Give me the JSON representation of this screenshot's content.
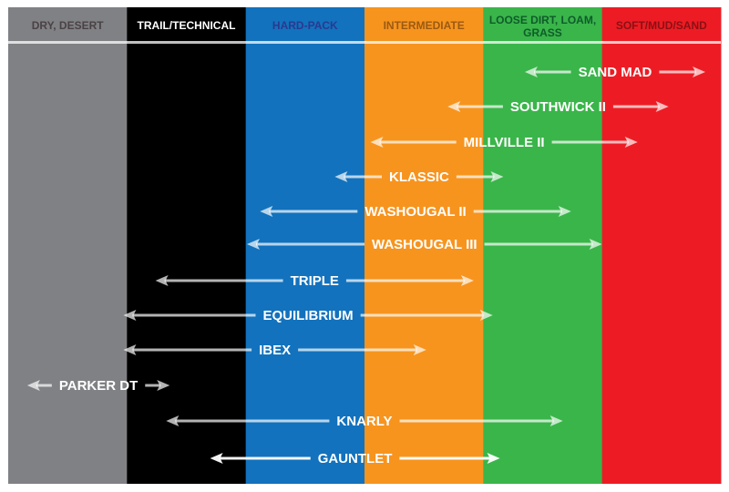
{
  "chart_data": {
    "type": "range",
    "terrain_columns": [
      {
        "label": "DRY, DESERT",
        "color": "#808184",
        "text_color": "#4a4244"
      },
      {
        "label": "TRAIL/TECHNICAL",
        "color": "#000000",
        "text_color": "#ffffff"
      },
      {
        "label": "HARD-PACK",
        "color": "#1272bd",
        "text_color": "#2a3990"
      },
      {
        "label": "INTERMEDIATE",
        "color": "#f7941e",
        "text_color": "#9a5a12"
      },
      {
        "label": "LOOSE DIRT, LOAM,|GRASS",
        "color": "#3ab54a",
        "text_color": "#0e5c2a"
      },
      {
        "label": "SOFT/MUD/SAND",
        "color": "#ed1c24",
        "text_color": "#8a1014"
      }
    ],
    "scale_note_units": "terrain column index (0 = left edge of DRY, DESERT, 6 = right edge of SOFT/MUD/SAND)",
    "tires": [
      {
        "name": "SAND MAD",
        "from": 4.35,
        "to": 5.87
      },
      {
        "name": "SOUTHWICK II",
        "from": 3.7,
        "to": 5.56
      },
      {
        "name": "MILLVILLE II",
        "from": 3.05,
        "to": 5.3
      },
      {
        "name": "KLASSIC",
        "from": 2.75,
        "to": 4.17
      },
      {
        "name": "WASHOUGAL II",
        "from": 2.12,
        "to": 4.74
      },
      {
        "name": "WASHOUGAL III",
        "from": 2.01,
        "to": 5.0
      },
      {
        "name": "TRIPLE",
        "from": 1.24,
        "to": 3.92
      },
      {
        "name": "EQUILIBRIUM",
        "from": 0.97,
        "to": 4.08
      },
      {
        "name": "IBEX",
        "from": 0.97,
        "to": 3.52
      },
      {
        "name": "PARKER DT",
        "from": 0.16,
        "to": 1.36
      },
      {
        "name": "KNARLY",
        "from": 1.33,
        "to": 4.67
      },
      {
        "name": "GAUNTLET",
        "from": 1.7,
        "to": 4.14,
        "highlight": true
      }
    ]
  }
}
